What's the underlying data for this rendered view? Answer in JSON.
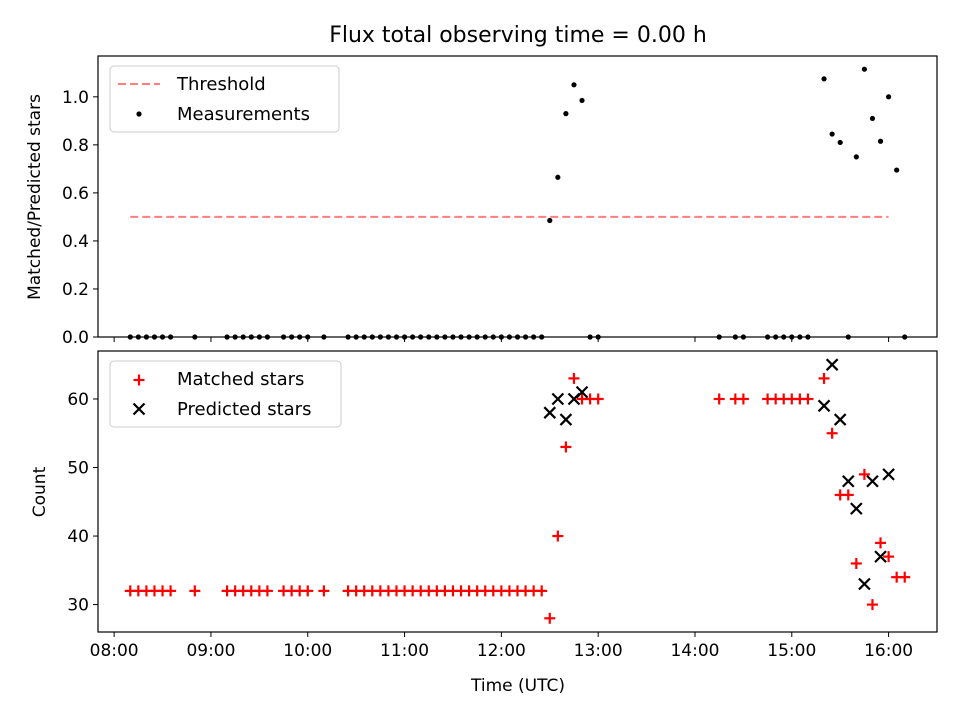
{
  "chart_data": [
    {
      "type": "scatter",
      "title": "Flux total observing time = 0.00 h",
      "xlabel": "",
      "ylabel": "Matched/Predicted stars",
      "xlim": [
        "07:50",
        "16:30"
      ],
      "ylim": [
        0,
        1.17
      ],
      "x_tick_labels": [],
      "y_ticks": [
        0.0,
        0.2,
        0.4,
        0.6,
        0.8,
        1.0
      ],
      "y_tick_labels": [
        "0.0",
        "0.2",
        "0.4",
        "0.6",
        "0.8",
        "1.0"
      ],
      "grid": false,
      "legend_position": "upper-left",
      "series": [
        {
          "name": "Threshold",
          "style": "dashed-line",
          "color": "#ff7f7f",
          "x": [
            "08:10",
            "16:00"
          ],
          "y": [
            0.5,
            0.5
          ]
        },
        {
          "name": "Measurements",
          "style": "dot",
          "color": "#000000",
          "x": [
            "08:10",
            "08:15",
            "08:20",
            "08:25",
            "08:30",
            "08:35",
            "08:50",
            "09:10",
            "09:15",
            "09:20",
            "09:25",
            "09:30",
            "09:35",
            "09:45",
            "09:50",
            "09:55",
            "10:00",
            "10:10",
            "10:25",
            "10:30",
            "10:35",
            "10:40",
            "10:45",
            "10:50",
            "10:55",
            "11:00",
            "11:05",
            "11:10",
            "11:15",
            "11:20",
            "11:25",
            "11:30",
            "11:35",
            "11:40",
            "11:45",
            "11:50",
            "11:55",
            "12:00",
            "12:05",
            "12:10",
            "12:15",
            "12:20",
            "12:25",
            "12:30",
            "12:35",
            "12:40",
            "12:45",
            "12:50",
            "12:55",
            "13:00",
            "14:15",
            "14:25",
            "14:30",
            "14:45",
            "14:50",
            "14:55",
            "15:00",
            "15:05",
            "15:10",
            "15:20",
            "15:25",
            "15:30",
            "15:35",
            "15:40",
            "15:45",
            "15:50",
            "15:55",
            "16:00",
            "16:05",
            "16:10"
          ],
          "y": [
            0,
            0,
            0,
            0,
            0,
            0,
            0,
            0,
            0,
            0,
            0,
            0,
            0,
            0,
            0,
            0,
            0,
            0,
            0,
            0,
            0,
            0,
            0,
            0,
            0,
            0,
            0,
            0,
            0,
            0,
            0,
            0,
            0,
            0,
            0,
            0,
            0,
            0,
            0,
            0,
            0,
            0,
            0,
            0.485,
            0.665,
            0.93,
            1.05,
            0.985,
            0,
            0,
            0,
            0,
            0,
            0,
            0,
            0,
            0,
            0,
            0,
            1.075,
            0.845,
            0.81,
            0,
            0.75,
            1.115,
            0.91,
            0.815,
            1.0,
            0.695,
            0
          ]
        }
      ]
    },
    {
      "type": "scatter",
      "title": "",
      "xlabel": "Time (UTC)",
      "ylabel": "Count",
      "xlim": [
        "07:50",
        "16:30"
      ],
      "ylim": [
        26,
        67
      ],
      "x_tick_labels": [
        "08:00",
        "09:00",
        "10:00",
        "11:00",
        "12:00",
        "13:00",
        "14:00",
        "15:00",
        "16:00"
      ],
      "y_ticks": [
        30,
        40,
        50,
        60
      ],
      "y_tick_labels": [
        "30",
        "40",
        "50",
        "60"
      ],
      "grid": false,
      "legend_position": "upper-left",
      "series": [
        {
          "name": "Matched stars",
          "style": "plus",
          "color": "#ff0000",
          "x": [
            "08:10",
            "08:15",
            "08:20",
            "08:25",
            "08:30",
            "08:35",
            "08:50",
            "09:10",
            "09:15",
            "09:20",
            "09:25",
            "09:30",
            "09:35",
            "09:45",
            "09:50",
            "09:55",
            "10:00",
            "10:10",
            "10:25",
            "10:30",
            "10:35",
            "10:40",
            "10:45",
            "10:50",
            "10:55",
            "11:00",
            "11:05",
            "11:10",
            "11:15",
            "11:20",
            "11:25",
            "11:30",
            "11:35",
            "11:40",
            "11:45",
            "11:50",
            "11:55",
            "12:00",
            "12:05",
            "12:10",
            "12:15",
            "12:20",
            "12:25",
            "12:30",
            "12:35",
            "12:40",
            "12:45",
            "12:50",
            "12:55",
            "13:00",
            "14:15",
            "14:25",
            "14:30",
            "14:45",
            "14:50",
            "14:55",
            "15:00",
            "15:05",
            "15:10",
            "15:20",
            "15:25",
            "15:30",
            "15:35",
            "15:40",
            "15:45",
            "15:50",
            "15:55",
            "16:00",
            "16:05",
            "16:10"
          ],
          "y": [
            32,
            32,
            32,
            32,
            32,
            32,
            32,
            32,
            32,
            32,
            32,
            32,
            32,
            32,
            32,
            32,
            32,
            32,
            32,
            32,
            32,
            32,
            32,
            32,
            32,
            32,
            32,
            32,
            32,
            32,
            32,
            32,
            32,
            32,
            32,
            32,
            32,
            32,
            32,
            32,
            32,
            32,
            32,
            28,
            40,
            53,
            63,
            60,
            60,
            60,
            60,
            60,
            60,
            60,
            60,
            60,
            60,
            60,
            60,
            63,
            55,
            46,
            46,
            36,
            49,
            30,
            39,
            37,
            34,
            34
          ]
        },
        {
          "name": "Predicted stars",
          "style": "x",
          "color": "#000000",
          "x": [
            "12:30",
            "12:35",
            "12:40",
            "12:45",
            "12:50",
            "15:20",
            "15:25",
            "15:30",
            "15:35",
            "15:40",
            "15:45",
            "15:50",
            "15:55",
            "16:00"
          ],
          "y": [
            58,
            60,
            57,
            60,
            61,
            59,
            65,
            57,
            48,
            44,
            33,
            48,
            37,
            49
          ]
        }
      ]
    }
  ]
}
